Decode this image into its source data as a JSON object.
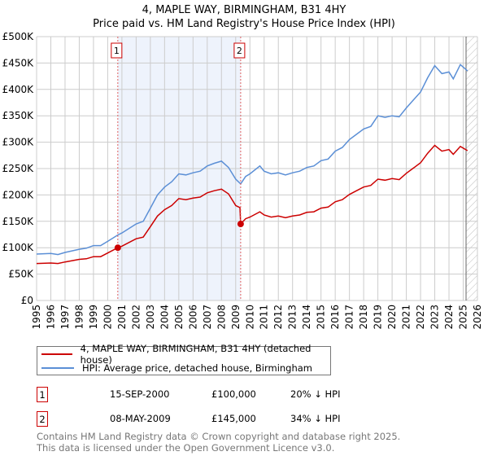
{
  "chart_data": {
    "type": "line",
    "title": "4, MAPLE WAY, BIRMINGHAM, B31 4HY",
    "subtitle": "Price paid vs. HM Land Registry's House Price Index (HPI)",
    "xlim": [
      1995,
      2026
    ],
    "ylim": [
      0,
      500000
    ],
    "x_ticks": [
      "1995",
      "1996",
      "1997",
      "1998",
      "1999",
      "2000",
      "2001",
      "2002",
      "2003",
      "2004",
      "2005",
      "2006",
      "2007",
      "2008",
      "2009",
      "2010",
      "2011",
      "2012",
      "2013",
      "2014",
      "2015",
      "2016",
      "2017",
      "2018",
      "2019",
      "2020",
      "2021",
      "2022",
      "2023",
      "2024",
      "2025",
      "2026"
    ],
    "y_ticks": [
      {
        "v": 0,
        "label": "£0"
      },
      {
        "v": 50000,
        "label": "£50K"
      },
      {
        "v": 100000,
        "label": "£100K"
      },
      {
        "v": 150000,
        "label": "£150K"
      },
      {
        "v": 200000,
        "label": "£200K"
      },
      {
        "v": 250000,
        "label": "£250K"
      },
      {
        "v": 300000,
        "label": "£300K"
      },
      {
        "v": 350000,
        "label": "£350K"
      },
      {
        "v": 400000,
        "label": "£400K"
      },
      {
        "v": 450000,
        "label": "£450K"
      },
      {
        "v": 500000,
        "label": "£500K"
      }
    ],
    "grid": true,
    "shaded_range": [
      2000.71,
      2009.35
    ],
    "forecast_hatch_from": 2025.2,
    "series": [
      {
        "name": "4, MAPLE WAY, BIRMINGHAM, B31 4HY (detached house)",
        "color": "#cc0000",
        "x": [
          1995,
          1996,
          1996.5,
          1997,
          1998,
          1998.5,
          1999,
          1999.5,
          2000,
          2000.71,
          2001,
          2002,
          2002.5,
          2003,
          2003.5,
          2004,
          2004.5,
          2005,
          2005.5,
          2006,
          2006.5,
          2007,
          2007.5,
          2008,
          2008.5,
          2009,
          2009.3,
          2009.35,
          2009.7,
          2010,
          2010.7,
          2011,
          2011.5,
          2012,
          2012.5,
          2013,
          2013.5,
          2014,
          2014.5,
          2015,
          2015.5,
          2016,
          2016.5,
          2017,
          2017.5,
          2018,
          2018.5,
          2019,
          2019.5,
          2020,
          2020.5,
          2021,
          2021.5,
          2022,
          2022.5,
          2023,
          2023.5,
          2024,
          2024.3,
          2024.8,
          2025.3
        ],
        "y": [
          70,
          71,
          70,
          73,
          78,
          79,
          83,
          83,
          90,
          100,
          103,
          117,
          120,
          140,
          160,
          172,
          180,
          193,
          191,
          194,
          196,
          204,
          208,
          211,
          202,
          180,
          176,
          145,
          155,
          158,
          168,
          162,
          158,
          160,
          157,
          160,
          162,
          167,
          168,
          175,
          177,
          187,
          191,
          201,
          208,
          215,
          218,
          230,
          228,
          231,
          229,
          241,
          251,
          261,
          279,
          294,
          283,
          286,
          277,
          292,
          284
        ]
      },
      {
        "name": "HPI: Average price, detached house, Birmingham",
        "color": "#5b8fd6",
        "x": [
          1995,
          1996,
          1996.5,
          1997,
          1998,
          1998.5,
          1999,
          1999.5,
          2000,
          2000.71,
          2001,
          2002,
          2002.5,
          2003,
          2003.5,
          2004,
          2004.5,
          2005,
          2005.5,
          2006,
          2006.5,
          2007,
          2007.5,
          2008,
          2008.5,
          2009,
          2009.35,
          2009.7,
          2010,
          2010.7,
          2011,
          2011.5,
          2012,
          2012.5,
          2013,
          2013.5,
          2014,
          2014.5,
          2015,
          2015.5,
          2016,
          2016.5,
          2017,
          2017.5,
          2018,
          2018.5,
          2019,
          2019.5,
          2020,
          2020.5,
          2021,
          2021.5,
          2022,
          2022.5,
          2023,
          2023.5,
          2024,
          2024.3,
          2024.8,
          2025.3
        ],
        "y": [
          88,
          89,
          87,
          91,
          97,
          99,
          104,
          104,
          112,
          124,
          128,
          145,
          150,
          175,
          200,
          215,
          225,
          240,
          238,
          242,
          245,
          255,
          260,
          264,
          252,
          230,
          221,
          235,
          240,
          255,
          245,
          240,
          242,
          238,
          242,
          245,
          252,
          255,
          265,
          268,
          283,
          290,
          305,
          315,
          325,
          330,
          350,
          347,
          350,
          348,
          365,
          380,
          395,
          422,
          445,
          430,
          433,
          420,
          447,
          435
        ]
      }
    ],
    "y_unit": "thousands GBP",
    "sales": [
      {
        "label": "1",
        "x": 2000.71,
        "y": 100
      },
      {
        "label": "2",
        "x": 2009.35,
        "y": 145
      }
    ]
  },
  "legend": {
    "red": "4, MAPLE WAY, BIRMINGHAM, B31 4HY (detached house)",
    "blue": "HPI: Average price, detached house, Birmingham"
  },
  "transactions": [
    {
      "num": "1",
      "date": "15-SEP-2000",
      "price": "£100,000",
      "pct": "20% ↓ HPI"
    },
    {
      "num": "2",
      "date": "08-MAY-2009",
      "price": "£145,000",
      "pct": "34% ↓ HPI"
    }
  ],
  "footer": [
    "Contains HM Land Registry data © Crown copyright and database right 2025.",
    "This data is licensed under the Open Government Licence v3.0."
  ]
}
